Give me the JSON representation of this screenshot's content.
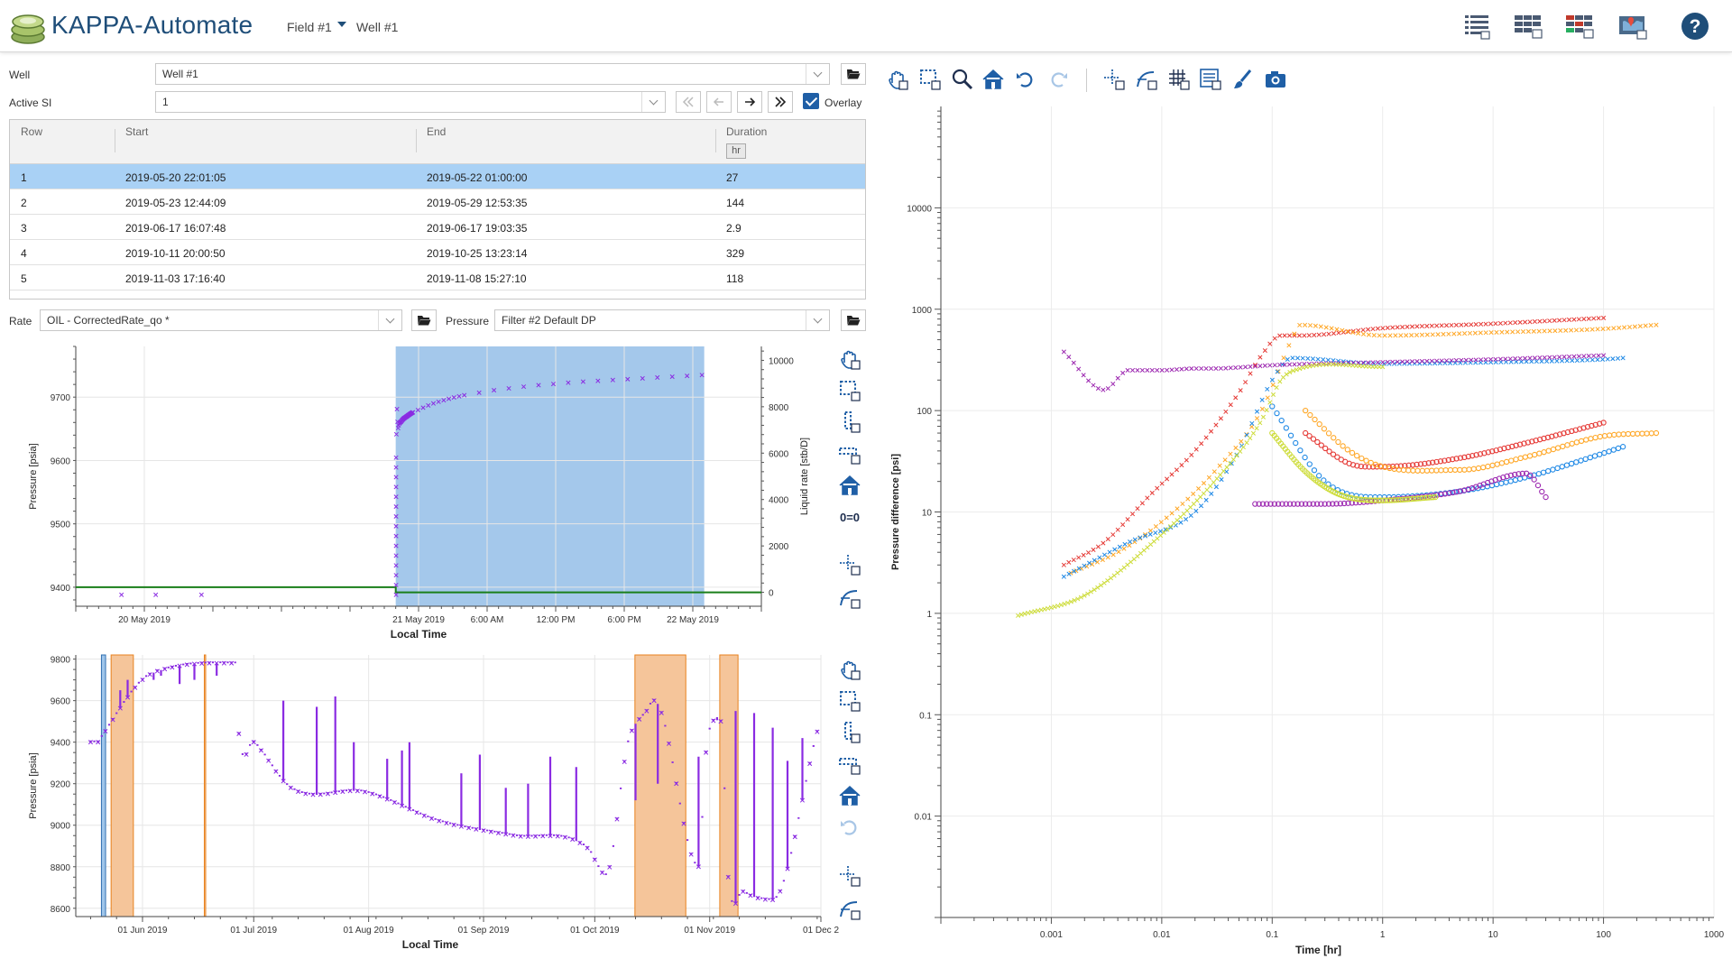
{
  "app": {
    "title": "KAPPA-Automate",
    "crumbs": [
      "Field #1",
      "Well #1"
    ]
  },
  "toolbar_right": {
    "icons": [
      "list-view-icon",
      "table-view-icon",
      "colored-table-icon",
      "map-view-icon",
      "help-icon"
    ]
  },
  "form": {
    "well_label": "Well",
    "well_value": "Well #1",
    "active_si_label": "Active SI",
    "active_si_value": "1",
    "overlay_label": "Overlay",
    "rate_label": "Rate",
    "rate_value": "OIL - CorrectedRate_qo *",
    "pressure_label": "Pressure",
    "pressure_value": "Filter #2 Default DP"
  },
  "table": {
    "headers": [
      "Row",
      "Start",
      "End",
      "Duration"
    ],
    "duration_unit": "hr",
    "rows": [
      [
        "1",
        "2019-05-20 22:01:05",
        "2019-05-22 01:00:00",
        "27"
      ],
      [
        "2",
        "2019-05-23 12:44:09",
        "2019-05-29 12:53:35",
        "144"
      ],
      [
        "3",
        "2019-06-17 16:07:48",
        "2019-06-17 19:03:35",
        "2.9"
      ],
      [
        "4",
        "2019-10-11 20:00:50",
        "2019-10-25 13:23:14",
        "329"
      ],
      [
        "5",
        "2019-11-03 17:16:40",
        "2019-11-08 15:27:10",
        "118"
      ]
    ],
    "selected_row": 0
  },
  "colors": {
    "brand": "#1f4e79",
    "selected": "#a9d1f5",
    "shaded_period": "#9fc5ea",
    "si_highlight": "#f5c59a",
    "pressure": "#8a2be2",
    "rate": "#1a7f1a",
    "series": [
      "#e53935",
      "#ffa726",
      "#1e88e5",
      "#9c27b0",
      "#cddc39"
    ]
  },
  "chart_data": [
    {
      "type": "line",
      "xlabel": "Local Time",
      "ylabel": "Pressure [psia]",
      "y2label": "Liquid rate [stb/D]",
      "x_ticks": [
        "20 May 2019",
        "21 May 2019",
        "6:00 AM",
        "12:00 PM",
        "6:00 PM",
        "22 May 2019"
      ],
      "y_ticks": [
        "9700",
        "9600",
        "9500",
        "9400"
      ],
      "y2_ticks": [
        "10000",
        "8000",
        "6000",
        "4000",
        "2000",
        "0"
      ],
      "ylim": [
        9370,
        9780
      ],
      "y2lim": [
        -600,
        10600
      ],
      "shaded_period": [
        "2019-05-20 22:01:05",
        "2019-05-22 01:00:00"
      ],
      "series": [
        {
          "name": "",
          "hours": [
            -24,
            -21,
            -17,
            0,
            0.05,
            0.2,
            0.5,
            1,
            1.5,
            2,
            3,
            4,
            5,
            6,
            7,
            8,
            9,
            10,
            12,
            14,
            16,
            18,
            20,
            22,
            24,
            26,
            27
          ],
          "values": [
            9388,
            9388,
            9388,
            9388,
            9620,
            9650,
            9662,
            9670,
            9676,
            9680,
            9688,
            9694,
            9699,
            9703,
            9706,
            9709,
            9712,
            9714,
            9718,
            9721,
            9724,
            9726,
            9728,
            9730,
            9732,
            9734,
            9735
          ]
        },
        {
          "name": "",
          "hours": [
            -28,
            0,
            0,
            32
          ],
          "values": [
            9400,
            9400,
            0,
            0
          ]
        }
      ]
    },
    {
      "type": "scatter",
      "xlabel": "Local Time",
      "ylabel": "Pressure [psia]",
      "x_ticks": [
        "01 Jun 2019",
        "01 Jul 2019",
        "01 Aug 2019",
        "01 Sep 2019",
        "01 Oct 2019",
        "01 Nov 2019",
        "01 Dec 2"
      ],
      "y_ticks": [
        "9800",
        "9600",
        "9400",
        "9200",
        "9000",
        "8800",
        "8600"
      ],
      "ylim": [
        8560,
        9820
      ],
      "x_days": [
        -12,
        0,
        8,
        25,
        26,
        30,
        40,
        60,
        80,
        100,
        120,
        125,
        131,
        136,
        138,
        150,
        152,
        156,
        158,
        162,
        170,
        182
      ],
      "values": [
        9400,
        9700,
        9760,
        9780,
        9440,
        9400,
        9180,
        9160,
        9020,
        8950,
        8890,
        8760,
        9400,
        9550,
        9600,
        8800,
        9350,
        9500,
        8750,
        8680,
        8640,
        9450
      ],
      "shut_in_periods": [
        [
          "2019-05-20 22:01:05",
          "2019-05-22 01:00:00"
        ],
        [
          "2019-05-23 12:44:09",
          "2019-05-29 12:53:35"
        ],
        [
          "2019-06-17 16:07:48",
          "2019-06-17 19:03:35"
        ],
        [
          "2019-10-11 20:00:50",
          "2019-10-25 13:23:14"
        ],
        [
          "2019-11-03 17:16:40",
          "2019-11-08 15:27:10"
        ]
      ]
    },
    {
      "type": "scatter",
      "xlabel": "Time [hr]",
      "ylabel": "Pressure difference [psi]",
      "log_x": true,
      "log_y": true,
      "xlim": [
        0.0001,
        1000
      ],
      "ylim": [
        0.001,
        100000
      ],
      "x_ticks": [
        "0.001",
        "0.01",
        "0.1",
        "1",
        "10",
        "100",
        "1000"
      ],
      "y_ticks": [
        "10000",
        "1000",
        "100",
        "10",
        "1",
        "0.1",
        "0.01"
      ],
      "series": [
        {
          "x": [
            0.0013,
            0.003,
            0.008,
            0.02,
            0.05,
            0.08,
            0.12,
            0.18,
            1,
            10,
            100
          ],
          "y": [
            3,
            5,
            15,
            40,
            150,
            350,
            550,
            550,
            650,
            720,
            820
          ],
          "derivative_x": [
            0.2,
            0.5,
            1,
            5,
            20,
            100
          ],
          "derivative_y": [
            60,
            30,
            28,
            34,
            48,
            76
          ]
        },
        {
          "x": [
            0.0015,
            0.004,
            0.01,
            0.03,
            0.08,
            0.15,
            0.18,
            1,
            10,
            100,
            300
          ],
          "y": [
            2.5,
            4,
            8,
            25,
            100,
            500,
            700,
            550,
            590,
            640,
            700
          ],
          "derivative_x": [
            0.2,
            0.5,
            1,
            5,
            20,
            100,
            300
          ],
          "derivative_y": [
            100,
            40,
            28,
            26,
            35,
            56,
            60
          ]
        },
        {
          "x": [
            0.0013,
            0.005,
            0.02,
            0.05,
            0.1,
            0.15,
            1,
            10,
            100,
            150
          ],
          "y": [
            2.3,
            5,
            10,
            40,
            200,
            330,
            290,
            300,
            320,
            330
          ],
          "derivative_x": [
            0.1,
            0.3,
            1,
            5,
            20,
            100,
            150
          ],
          "derivative_y": [
            110,
            20,
            14,
            16,
            22,
            38,
            44
          ]
        },
        {
          "x": [
            0.0013,
            0.003,
            0.005,
            0.01,
            0.02,
            0.03,
            0.06,
            0.1,
            1,
            10,
            100
          ],
          "y": [
            380,
            160,
            250,
            250,
            260,
            260,
            270,
            280,
            300,
            320,
            350
          ],
          "derivative_x": [
            0.07,
            0.1,
            0.3,
            1,
            5,
            20,
            30
          ],
          "derivative_y": [
            12,
            12,
            12,
            13,
            16,
            24,
            14
          ]
        },
        {
          "x": [
            0.0005,
            0.002,
            0.01,
            0.03,
            0.08,
            0.12,
            0.18,
            1
          ],
          "y": [
            0.95,
            1.5,
            6,
            20,
            80,
            200,
            260,
            270
          ],
          "derivative_x": [
            0.1,
            0.2,
            0.4,
            1,
            3
          ],
          "derivative_y": [
            60,
            25,
            15,
            13,
            14
          ]
        }
      ]
    }
  ]
}
